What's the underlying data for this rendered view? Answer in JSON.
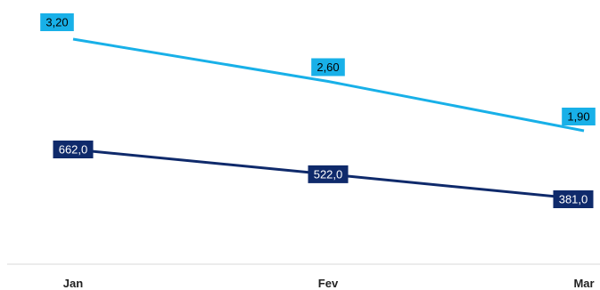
{
  "chart_data": {
    "type": "line",
    "categories": [
      "Jan",
      "Fev",
      "Mar"
    ],
    "series": [
      {
        "key": "top",
        "values": [
          3.2,
          2.6,
          1.9
        ],
        "labels": [
          "3,20",
          "2,60",
          "1,90"
        ],
        "color": "#18b0e8",
        "label_text_color": "#000000"
      },
      {
        "key": "bottom",
        "values": [
          662.0,
          522.0,
          381.0
        ],
        "labels": [
          "662,0",
          "522,0",
          "381,0"
        ],
        "color": "#0f2a6b",
        "label_text_color": "#ffffff"
      }
    ],
    "grid": false,
    "legend": "none",
    "axis_line_color": "#d9d9d9"
  }
}
